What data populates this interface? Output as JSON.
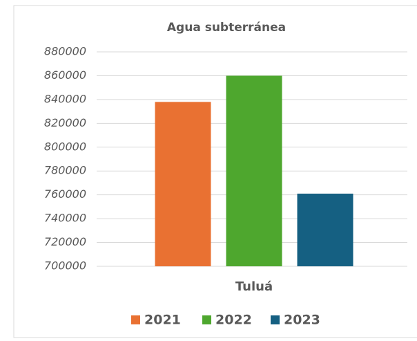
{
  "chart_data": {
    "type": "bar",
    "title": "Agua subterránea",
    "categories": [
      "Tuluá"
    ],
    "series": [
      {
        "name": "2021",
        "color": "#e97132",
        "values": [
          838000
        ]
      },
      {
        "name": "2022",
        "color": "#4ea72e",
        "values": [
          860000
        ]
      },
      {
        "name": "2023",
        "color": "#156082",
        "values": [
          761000
        ]
      }
    ],
    "ylim": [
      700000,
      880000
    ],
    "yticks": [
      700000,
      720000,
      740000,
      760000,
      780000,
      800000,
      820000,
      840000,
      860000,
      880000
    ],
    "grid": true,
    "legend": "bottom"
  }
}
